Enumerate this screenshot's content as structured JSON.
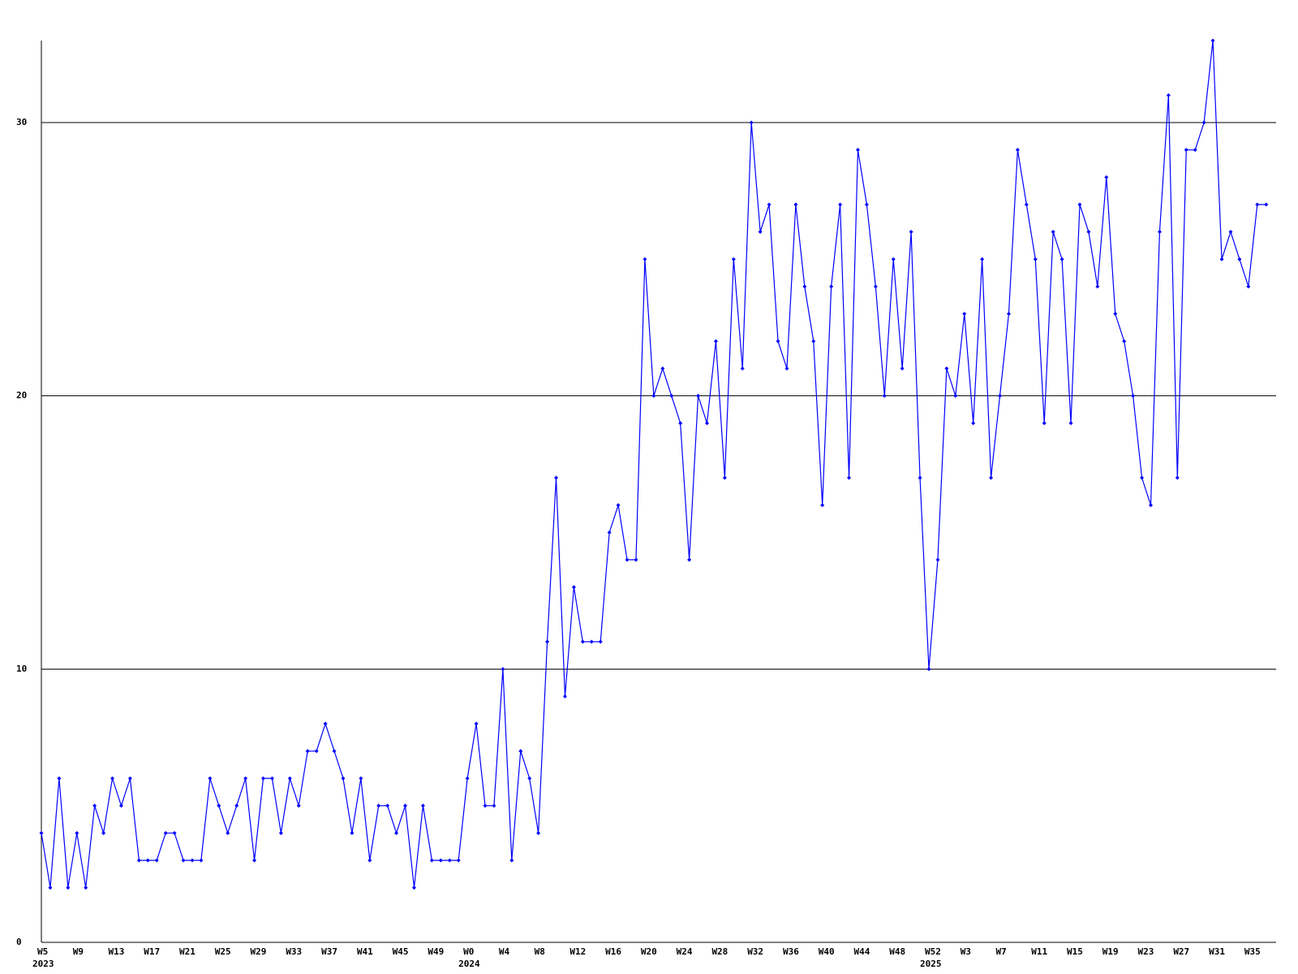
{
  "chart_data": {
    "type": "line",
    "color": "#0000ff",
    "grid": true,
    "ylim": [
      0,
      33
    ],
    "yticks": [
      0,
      10,
      20,
      30
    ],
    "categories": [
      "W5",
      null,
      null,
      null,
      "W9",
      null,
      null,
      null,
      "W13",
      null,
      null,
      null,
      "W17",
      null,
      null,
      null,
      "W21",
      null,
      null,
      null,
      "W25",
      null,
      null,
      null,
      "W29",
      null,
      null,
      null,
      "W33",
      null,
      null,
      null,
      "W37",
      null,
      null,
      null,
      "W41",
      null,
      null,
      null,
      "W45",
      null,
      null,
      null,
      "W49",
      null,
      null,
      null,
      "W0",
      null,
      null,
      null,
      "W4",
      null,
      null,
      null,
      "W8",
      null,
      null,
      null,
      "W12",
      null,
      null,
      null,
      "W16",
      null,
      null,
      null,
      "W20",
      null,
      null,
      null,
      "W24",
      null,
      null,
      null,
      "W28",
      null,
      null,
      null,
      "W32",
      null,
      null,
      null,
      "W36",
      null,
      null,
      null,
      "W40",
      null,
      null,
      null,
      "W44",
      null,
      null,
      null,
      "W48",
      null,
      null,
      null,
      "W52",
      null,
      null,
      null,
      "W3",
      null,
      null,
      null,
      "W7",
      null,
      null,
      null,
      "W11",
      null,
      null,
      null,
      "W15",
      null,
      null,
      null,
      "W19",
      null,
      null,
      null,
      "W23",
      null,
      null,
      null,
      "W27",
      null,
      null,
      null,
      "W31",
      null,
      null,
      null,
      "W35",
      null,
      null
    ],
    "years": [
      "2023",
      null,
      null,
      null,
      null,
      null,
      null,
      null,
      null,
      null,
      null,
      null,
      null,
      null,
      null,
      null,
      null,
      null,
      null,
      null,
      null,
      null,
      null,
      null,
      null,
      null,
      null,
      null,
      null,
      null,
      null,
      null,
      null,
      null,
      null,
      null,
      null,
      null,
      null,
      null,
      null,
      null,
      null,
      null,
      null,
      null,
      null,
      null,
      "2024",
      null,
      null,
      null,
      null,
      null,
      null,
      null,
      null,
      null,
      null,
      null,
      null,
      null,
      null,
      null,
      null,
      null,
      null,
      null,
      null,
      null,
      null,
      null,
      null,
      null,
      null,
      null,
      null,
      null,
      null,
      null,
      null,
      null,
      null,
      null,
      null,
      null,
      null,
      null,
      null,
      null,
      null,
      null,
      null,
      null,
      null,
      null,
      null,
      null,
      null,
      null,
      "2025",
      null,
      null,
      null,
      null,
      null,
      null,
      null,
      null,
      null,
      null,
      null,
      null,
      null,
      null,
      null,
      null,
      null,
      null,
      null,
      null,
      null,
      null,
      null,
      null,
      null,
      null,
      null,
      null,
      null,
      null,
      null,
      null,
      null,
      null,
      null,
      null,
      null
    ],
    "values": [
      4,
      2,
      6,
      2,
      4,
      2,
      5,
      4,
      6,
      5,
      6,
      3,
      3,
      3,
      4,
      4,
      3,
      3,
      3,
      6,
      5,
      4,
      5,
      6,
      3,
      6,
      6,
      4,
      6,
      5,
      7,
      7,
      8,
      7,
      6,
      4,
      6,
      3,
      5,
      5,
      4,
      5,
      2,
      5,
      3,
      3,
      3,
      3,
      6,
      8,
      5,
      5,
      10,
      3,
      7,
      6,
      4,
      11,
      17,
      9,
      13,
      11,
      11,
      11,
      15,
      16,
      14,
      14,
      25,
      20,
      21,
      20,
      19,
      14,
      20,
      19,
      22,
      17,
      25,
      21,
      30,
      26,
      27,
      22,
      21,
      27,
      24,
      22,
      16,
      24,
      27,
      17,
      29,
      27,
      24,
      20,
      25,
      21,
      26,
      17,
      10,
      14,
      21,
      20,
      23,
      19,
      25,
      17,
      20,
      23,
      29,
      27,
      25,
      19,
      26,
      25,
      19,
      27,
      26,
      24,
      28,
      23,
      22,
      20,
      17,
      16,
      26,
      31,
      17,
      29,
      29,
      30,
      33,
      25,
      26,
      25,
      24,
      27,
      27
    ]
  }
}
